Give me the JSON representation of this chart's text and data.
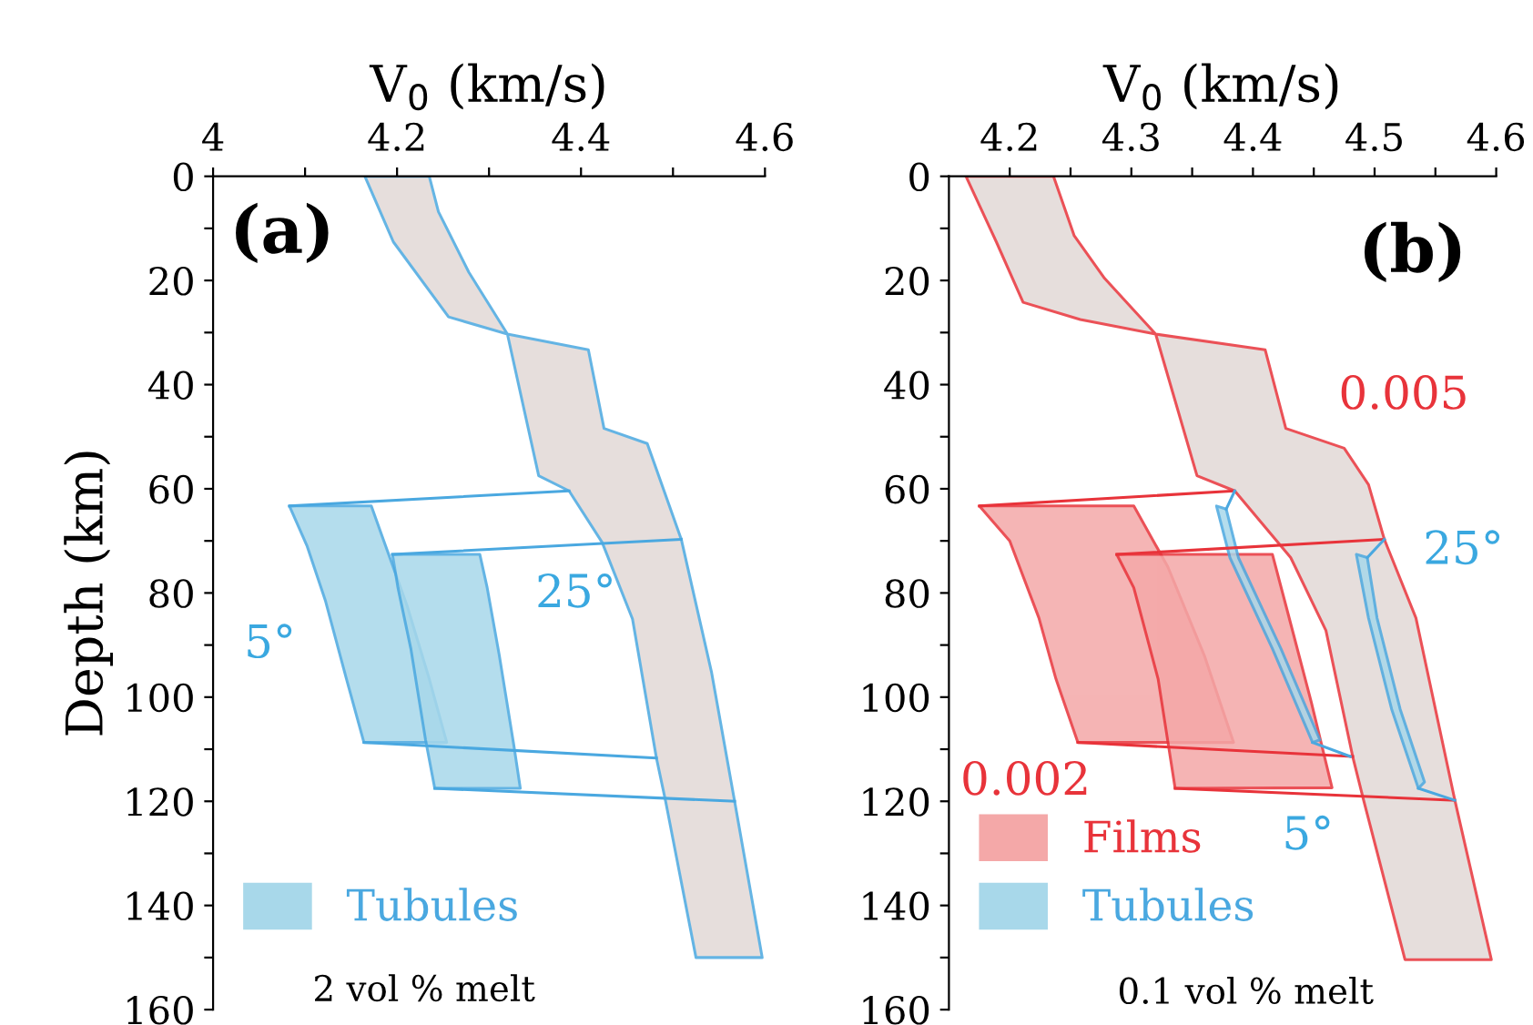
{
  "chart_data": [
    {
      "type": "area",
      "xlabel": "V$_{0}$ (km/s)",
      "ylabel": "Depth (km)",
      "xlim": [
        4,
        4.6
      ],
      "ylim": [
        160,
        0
      ],
      "xticks": [
        4,
        {
          "value": 4.1,
          "label": null
        },
        4.2,
        {
          "value": 4.3,
          "label": null
        },
        4.4,
        {
          "value": 4.5,
          "label": null
        },
        4.6
      ],
      "yticks": [
        0,
        {
          "value": 10,
          "label": null
        },
        20,
        {
          "value": 30,
          "label": null
        },
        40,
        {
          "value": 50,
          "label": null
        },
        60,
        {
          "value": 70,
          "label": null
        },
        80,
        {
          "value": 90,
          "label": null
        },
        100,
        {
          "value": 110,
          "label": null
        },
        120,
        {
          "value": 130,
          "label": null
        },
        140,
        {
          "value": 150,
          "label": null
        },
        160
      ],
      "legend": "bottom left",
      "grid": false,
      "series": [
        {
          "color": "#e2d9d6",
          "x": [
            4.165,
            4.196,
            4.256,
            4.32,
            4.354,
            4.387,
            4.423,
            4.456,
            4.482,
            4.492,
            4.525,
            4.597,
            4.567,
            4.542,
            4.509,
            4.472,
            4.425,
            4.408,
            4.32,
            4.278,
            4.245,
            4.235
          ],
          "values": [
            0,
            12.6,
            27,
            30.3,
            57.5,
            60.4,
            70.3,
            85,
            111.7,
            120,
            150,
            150,
            120,
            95.3,
            69.7,
            51.3,
            48.4,
            33.3,
            30.3,
            18.4,
            6.8,
            0
          ]
        },
        {
          "name": "Tubules",
          "color": "#a8d8ea",
          "x": [
            4.083,
            4.172,
            4.185,
            4.211,
            4.235,
            4.254,
            4.164,
            4.145,
            4.122,
            4.102
          ],
          "values": [
            63.3,
            63.3,
            69.7,
            82.5,
            96.5,
            108.7,
            108.7,
            96.5,
            81.4,
            70.9
          ]
        },
        {
          "color": "#a8d8ea",
          "x": [
            4.195,
            4.29,
            4.298,
            4.311,
            4.327,
            4.334,
            4.241,
            4.231,
            4.215,
            4.201
          ],
          "values": [
            72.6,
            72.6,
            79,
            91.8,
            109.3,
            117.5,
            117.5,
            108.2,
            90.7,
            79
          ]
        },
        {
          "type": "line",
          "color": "#4aa8e0",
          "x": [
            4.083,
            4.387,
            null,
            4.164,
            4.482,
            null,
            4.195,
            4.509,
            null,
            4.241,
            4.567
          ],
          "values": [
            63.3,
            60.4,
            null,
            108.7,
            111.7,
            null,
            72.6,
            69.7,
            null,
            117.5,
            120
          ]
        }
      ],
      "annotations": [
        "(a)",
        "25°",
        "5°",
        "2 vol % melt"
      ]
    },
    {
      "type": "area",
      "xlabel": "V$_{0}$ (km/s)",
      "xlim": [
        4.15,
        4.6
      ],
      "ylim": [
        160,
        0
      ],
      "xticks": [
        4.2,
        {
          "value": 4.25,
          "label": null
        },
        4.3,
        {
          "value": 4.35,
          "label": null
        },
        4.4,
        {
          "value": 4.45,
          "label": null
        },
        4.5,
        {
          "value": 4.55,
          "label": null
        },
        4.6
      ],
      "yticks": [
        0,
        {
          "value": 10,
          "label": null
        },
        20,
        {
          "value": 30,
          "label": null
        },
        40,
        {
          "value": 50,
          "label": null
        },
        60,
        {
          "value": 70,
          "label": null
        },
        80,
        {
          "value": 90,
          "label": null
        },
        100,
        {
          "value": 110,
          "label": null
        },
        120,
        {
          "value": 130,
          "label": null
        },
        140,
        {
          "value": 150,
          "label": null
        },
        160
      ],
      "legend": "bottom left",
      "grid": false,
      "series": [
        {
          "color": "#e2d9d6",
          "x": [
            4.164,
            4.189,
            4.211,
            4.258,
            4.32,
            4.354,
            4.385,
            4.431,
            4.46,
            4.482,
            4.491,
            4.525,
            4.596,
            4.566,
            4.534,
            4.508,
            4.495,
            4.475,
            4.427,
            4.41,
            4.32,
            4.278,
            4.253,
            4.236
          ],
          "values": [
            0,
            12.6,
            24.2,
            27.5,
            30.3,
            57.5,
            60.4,
            73.2,
            87.2,
            111.4,
            119.8,
            150.4,
            150.4,
            119.8,
            84.8,
            69.7,
            59.2,
            52.2,
            48.4,
            33.3,
            30.3,
            19.6,
            11.4,
            0
          ]
        },
        {
          "name": "Films",
          "color": "#f4a8a8",
          "x": [
            4.175,
            4.302,
            4.33,
            4.36,
            4.384,
            4.256,
            4.238,
            4.224,
            4.2
          ],
          "values": [
            63.3,
            63.3,
            75,
            92,
            108.7,
            108.7,
            96.5,
            84.8,
            70
          ]
        },
        {
          "color": "#f4a8a8",
          "x": [
            4.288,
            4.416,
            4.43,
            4.448,
            4.465,
            4.336,
            4.322,
            4.302
          ],
          "values": [
            72.6,
            72.6,
            85,
            101,
            117.4,
            117.5,
            96.5,
            79
          ]
        },
        {
          "type": "line",
          "color": "#e8333a",
          "x": [
            4.175,
            4.385,
            null,
            4.256,
            4.482,
            null,
            4.288,
            4.508,
            null,
            4.336,
            4.566
          ],
          "values": [
            63.3,
            60.4,
            null,
            108.7,
            111.4,
            null,
            72.6,
            69.7,
            null,
            117.5,
            119.8
          ]
        },
        {
          "name": "Tubules",
          "color": "#a8d8ea",
          "x": [
            4.37,
            4.381,
            4.416,
            4.449,
            4.455,
            4.423,
            4.388,
            4.378
          ],
          "values": [
            63.3,
            73.2,
            90.7,
            108.7,
            108.2,
            90.7,
            73.2,
            63.9
          ]
        },
        {
          "color": "#a8d8ea",
          "x": [
            4.485,
            4.495,
            4.514,
            4.536,
            4.541,
            4.521,
            4.502,
            4.494
          ],
          "values": [
            72.6,
            84.8,
            102.3,
            117.5,
            116.3,
            102.3,
            84.8,
            73.2
          ]
        },
        {
          "type": "line",
          "color": "#4aa8e0",
          "x": [
            4.378,
            4.385,
            null,
            4.449,
            4.48,
            null,
            4.494,
            4.508,
            null,
            4.536,
            4.566
          ],
          "values": [
            63.9,
            60.4,
            null,
            108.7,
            111.4,
            null,
            73.2,
            69.7,
            null,
            117.5,
            119.8
          ]
        }
      ],
      "annotations": [
        "(b)",
        "0.005",
        "25°",
        "0.002",
        "5°",
        "0.1 vol % melt"
      ]
    }
  ]
}
